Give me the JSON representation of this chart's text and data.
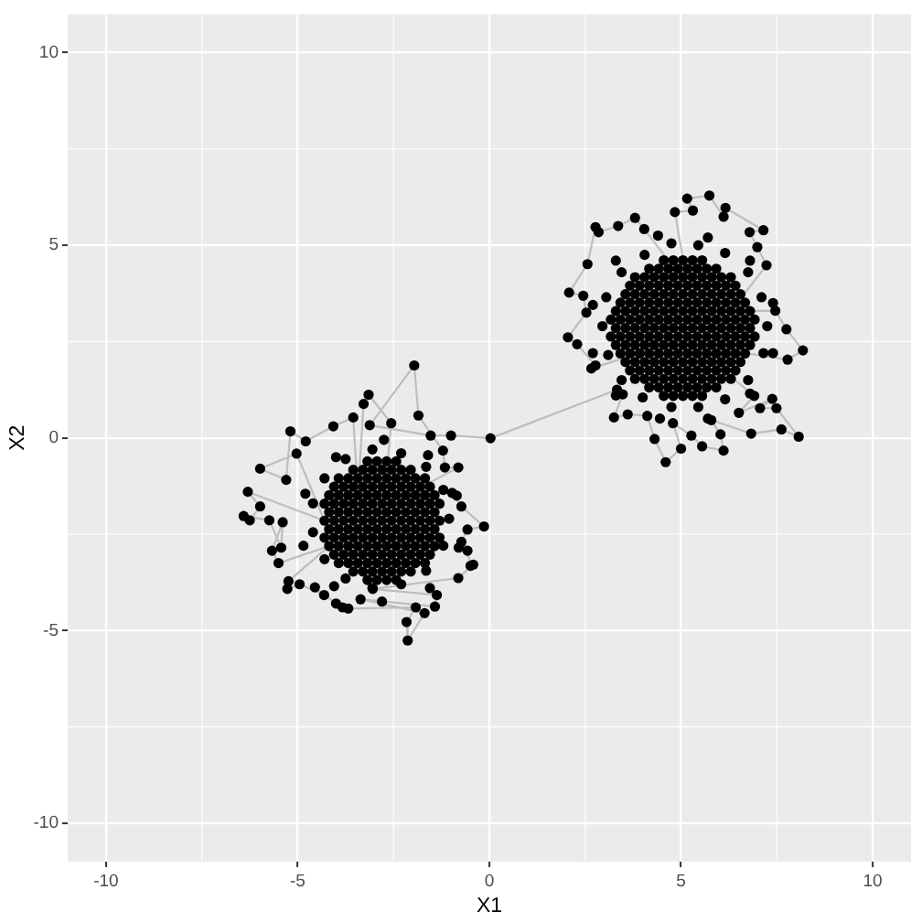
{
  "chart_data": {
    "type": "scatter",
    "xlabel": "X1",
    "ylabel": "X2",
    "xlim": [
      -11,
      11
    ],
    "ylim": [
      -11,
      11
    ],
    "xticks": [
      -10,
      -5,
      0,
      5,
      10
    ],
    "yticks": [
      -10,
      -5,
      0,
      5,
      10
    ],
    "grid": true,
    "marker": "circle",
    "series": [
      {
        "type": "line",
        "marker": "none",
        "color": "#bebebe",
        "x": [
          -2.8,
          -2.56,
          -3.15,
          -3.28,
          -3.43,
          -3.55,
          -4.07,
          -4.79,
          -5.19,
          -5.3,
          -5.98,
          -5.03,
          -4.3,
          -6.3,
          -5.98,
          -6.25,
          -6.41,
          -5.74,
          -5.43,
          -5.39,
          -5.67,
          -5.5,
          -4.18,
          -5.24,
          -5.27,
          -4.95,
          -4.31,
          -4.55,
          -4,
          -3.83,
          -3.68,
          -1.92,
          -2.16,
          -2.13,
          -1.69,
          -3.36,
          -1.42,
          -1.37,
          -3.04,
          -0.81,
          -0.42,
          -0.49,
          -0.57,
          -0.73,
          -0.57,
          -0.14,
          -0.73,
          -0.97,
          -2.18,
          -0.81,
          -1.16,
          -1.21,
          -1.85,
          -1.96,
          -3.12,
          -1.53,
          -1,
          0.03,
          3.33,
          3.48,
          3.25,
          3.61,
          4.12,
          4.31,
          4.6,
          5,
          4.79,
          5.27,
          5.55,
          6.11,
          6.03,
          5.79,
          6.83,
          7.62,
          8.07,
          7.49,
          7.06,
          7.38,
          6.51,
          6.91,
          5.3,
          7.78,
          8.18,
          7.75,
          7.46,
          6.3,
          7.23,
          6.99,
          6.79,
          7.15,
          6.16,
          6.11,
          5.74,
          5.16,
          5.31,
          4.84,
          5.17,
          4.04,
          3.8,
          3.36,
          2.85,
          2.77,
          2.56,
          2.08,
          2.45,
          2.53,
          2.05,
          2.29,
          2.77,
          2.66,
          4.55
        ],
        "values": [
          -2.15,
          0.38,
          1.12,
          0.88,
          -1.49,
          0.53,
          0.3,
          -0.09,
          0.17,
          -1.09,
          -0.8,
          -0.41,
          -2.15,
          -1.4,
          -1.78,
          -2.14,
          -2.03,
          -2.14,
          -2.85,
          -2.19,
          -2.93,
          -3.25,
          -2.81,
          -3.72,
          -3.92,
          -3.8,
          -4.08,
          -3.88,
          -4.3,
          -4.4,
          -4.43,
          -4.4,
          -4.78,
          -5.26,
          -4.55,
          -4.19,
          -4.38,
          -4.08,
          -3.92,
          -3.64,
          -3.29,
          -3.32,
          -2.93,
          -2.7,
          -2.38,
          -2.3,
          -1.78,
          -1.43,
          -1.49,
          -0.77,
          -0.77,
          -0.33,
          0.58,
          1.88,
          0.33,
          0.06,
          0.06,
          -0.01,
          1.25,
          1.13,
          0.53,
          0.61,
          0.57,
          -0.03,
          -0.63,
          -0.28,
          0.38,
          0.06,
          -0.22,
          -0.33,
          0.09,
          0.46,
          0.11,
          0.22,
          0.03,
          0.77,
          0.77,
          1.01,
          0.65,
          1.09,
          2.41,
          2.03,
          2.27,
          2.82,
          3.3,
          3.29,
          4.48,
          4.95,
          5.34,
          5.39,
          5.97,
          5.74,
          6.29,
          6.21,
          5.9,
          5.86,
          3.95,
          5.42,
          5.71,
          5.5,
          5.34,
          5.47,
          4.51,
          3.77,
          3.69,
          3.25,
          2.61,
          2.43,
          1.88,
          1.8,
          2.41
        ]
      },
      {
        "type": "scatter",
        "color": "#000000",
        "x": [
          -1.96,
          -1.85,
          -3.15,
          -3.28,
          -3.55,
          -3.12,
          -4.07,
          -5.19,
          -4.79,
          -5.03,
          -5.98,
          -5.3,
          -6.3,
          -5.98,
          -6.41,
          -6.25,
          -5.74,
          -5.39,
          -5.67,
          -5.43,
          -5.5,
          -5.24,
          -5.27,
          -4.95,
          -4.55,
          -4.31,
          -4,
          -3.68,
          -3.83,
          -3.36,
          -3.04,
          -2.16,
          -2.13,
          -1.92,
          -1.69,
          -1.42,
          -1.37,
          -0.81,
          -0.49,
          -0.42,
          -0.57,
          -0.73,
          -0.14,
          -0.57,
          -0.73,
          -0.97,
          -0.81,
          -1.16,
          -1,
          -1.21,
          -1.53,
          -2.56,
          -1.05,
          -1.2,
          -1.65,
          -2.3,
          -3.05,
          -3.75,
          -4.3,
          -4.6,
          -4.6,
          -4.3,
          -3.75,
          -3.05,
          -2.3,
          -1.65,
          -1.2,
          -0.85,
          -1.6,
          -2.75,
          -4,
          -4.8,
          -4.85,
          -4.05,
          -2.8,
          -1.55,
          -0.8,
          -3.18,
          -2.93,
          -2.68,
          -2.43,
          -3.55,
          -3.3,
          -3.05,
          -2.8,
          -2.55,
          -2.3,
          -2.05,
          -3.93,
          -3.68,
          -3.43,
          -3.18,
          -2.93,
          -2.68,
          -2.43,
          -2.18,
          -1.93,
          -1.68,
          -4.05,
          -3.8,
          -3.55,
          -3.3,
          -3.05,
          -2.8,
          -2.55,
          -2.3,
          -2.05,
          -1.8,
          -1.55,
          -4.18,
          -3.93,
          -3.68,
          -3.43,
          -3.18,
          -2.93,
          -2.68,
          -2.43,
          -2.18,
          -1.93,
          -1.68,
          -1.43,
          -4.3,
          -4.05,
          -3.8,
          -3.55,
          -3.3,
          -3.05,
          -2.8,
          -2.55,
          -2.3,
          -2.05,
          -1.8,
          -1.55,
          -1.3,
          -4.18,
          -3.93,
          -3.68,
          -3.43,
          -3.18,
          -2.93,
          -2.68,
          -2.43,
          -2.18,
          -1.93,
          -1.68,
          -1.43,
          -4.3,
          -4.05,
          -3.8,
          -3.55,
          -3.3,
          -3.05,
          -2.8,
          -2.55,
          -2.3,
          -2.05,
          -1.8,
          -1.55,
          -1.3,
          -4.18,
          -3.93,
          -3.68,
          -3.43,
          -3.18,
          -2.93,
          -2.68,
          -2.43,
          -2.18,
          -1.93,
          -1.68,
          -1.43,
          -4.3,
          -4.05,
          -3.8,
          -3.55,
          -3.3,
          -3.05,
          -2.8,
          -2.55,
          -2.3,
          -2.05,
          -1.8,
          -1.55,
          -1.3,
          -4.18,
          -3.93,
          -3.68,
          -3.43,
          -3.18,
          -2.93,
          -2.68,
          -2.43,
          -2.18,
          -1.93,
          -1.68,
          -1.43,
          -4.05,
          -3.8,
          -3.55,
          -3.3,
          -3.05,
          -2.8,
          -2.55,
          -2.3,
          -2.05,
          -1.8,
          -1.55,
          -3.93,
          -3.68,
          -3.43,
          -3.18,
          -2.93,
          -2.68,
          -2.43,
          -2.18,
          -1.93,
          -1.68,
          -3.55,
          -3.3,
          -3.05,
          -2.8,
          -2.55,
          -2.3,
          -2.05,
          -3.18,
          -2.93,
          -2.68,
          -2.43,
          0.03,
          3.33,
          5.16,
          5.74,
          6.16,
          6.11,
          5.31,
          4.84,
          3.8,
          3.36,
          2.77,
          2.85,
          4.04,
          6.79,
          7.15,
          2.56,
          2.08,
          2.45,
          2.53,
          2.05,
          2.29,
          2.66,
          2.77,
          8.18,
          7.78,
          7.75,
          7.46,
          7.23,
          6.99,
          7.38,
          7.49,
          8.07,
          7.62,
          6.83,
          6.11,
          4.6,
          5,
          5.55,
          4.31,
          5.27,
          6.03,
          3.25,
          3.61,
          4.12,
          4.79,
          5.79,
          6.51,
          3.48,
          6.91,
          7.06,
          7.25,
          7.1,
          6.75,
          6.15,
          5.45,
          4.75,
          4.05,
          3.45,
          3.05,
          2.95,
          3.1,
          3.45,
          4,
          4.75,
          5.45,
          6.15,
          6.75,
          7.15,
          7.4,
          6.8,
          5.7,
          4.4,
          3.3,
          2.7,
          2.7,
          3.3,
          4.45,
          5.7,
          6.8,
          7.4,
          4.55,
          4.8,
          5.05,
          5.3,
          5.55,
          4.17,
          4.42,
          4.67,
          4.92,
          5.17,
          5.42,
          5.67,
          5.92,
          3.8,
          4.05,
          4.3,
          4.55,
          4.8,
          5.05,
          5.3,
          5.55,
          5.8,
          6.05,
          6.3,
          3.67,
          3.92,
          4.17,
          4.42,
          4.67,
          4.92,
          5.17,
          5.42,
          5.67,
          5.92,
          6.17,
          6.42,
          3.55,
          3.8,
          4.05,
          4.3,
          4.55,
          4.8,
          5.05,
          5.3,
          5.55,
          5.8,
          6.05,
          6.3,
          6.55,
          3.42,
          3.67,
          3.92,
          4.17,
          4.42,
          4.67,
          4.92,
          5.17,
          5.42,
          5.67,
          5.92,
          6.17,
          6.42,
          6.67,
          3.3,
          3.55,
          3.8,
          4.05,
          4.3,
          4.55,
          4.8,
          5.05,
          5.3,
          5.55,
          5.8,
          6.05,
          6.3,
          6.55,
          6.8,
          3.17,
          3.42,
          3.67,
          3.92,
          4.17,
          4.42,
          4.67,
          4.92,
          5.17,
          5.42,
          5.67,
          5.92,
          6.17,
          6.42,
          6.67,
          6.92,
          3.3,
          3.55,
          3.8,
          4.05,
          4.3,
          4.55,
          4.8,
          5.05,
          5.3,
          5.55,
          5.8,
          6.05,
          6.3,
          6.55,
          6.8,
          3.17,
          3.42,
          3.67,
          3.92,
          4.17,
          4.42,
          4.67,
          4.92,
          5.17,
          5.42,
          5.67,
          5.92,
          6.17,
          6.42,
          6.67,
          6.92,
          3.3,
          3.55,
          3.8,
          4.05,
          4.3,
          4.55,
          4.8,
          5.05,
          5.3,
          5.55,
          5.8,
          6.05,
          6.3,
          6.55,
          6.8,
          3.42,
          3.67,
          3.92,
          4.17,
          4.42,
          4.67,
          4.92,
          5.17,
          5.42,
          5.67,
          5.92,
          6.17,
          6.42,
          6.67,
          3.55,
          3.8,
          4.05,
          4.3,
          4.55,
          4.8,
          5.05,
          5.3,
          5.55,
          5.8,
          6.05,
          6.3,
          6.55,
          3.67,
          3.92,
          4.17,
          4.42,
          4.67,
          4.92,
          5.17,
          5.42,
          5.67,
          5.92,
          6.17,
          6.42,
          3.8,
          4.05,
          4.3,
          4.55,
          4.8,
          5.05,
          5.3,
          5.55,
          5.8,
          6.05,
          6.3,
          4.17,
          4.42,
          4.67,
          4.92,
          5.17,
          5.42,
          5.67,
          5.92,
          4.55,
          4.8,
          5.05,
          5.3,
          5.55
        ],
        "values": [
          1.88,
          0.58,
          1.12,
          0.88,
          0.53,
          0.33,
          0.3,
          0.17,
          -0.09,
          -0.41,
          -0.8,
          -1.09,
          -1.4,
          -1.78,
          -2.03,
          -2.14,
          -2.14,
          -2.19,
          -2.93,
          -2.85,
          -3.25,
          -3.72,
          -3.92,
          -3.8,
          -3.88,
          -4.08,
          -4.3,
          -4.43,
          -4.4,
          -4.19,
          -3.92,
          -4.78,
          -5.26,
          -4.4,
          -4.55,
          -4.38,
          -4.08,
          -3.64,
          -3.32,
          -3.29,
          -2.93,
          -2.7,
          -2.3,
          -2.38,
          -1.78,
          -1.43,
          -0.77,
          -0.77,
          0.06,
          -0.33,
          0.06,
          0.38,
          -2.1,
          -1.35,
          -0.75,
          -0.4,
          -0.3,
          -0.55,
          -1.05,
          -1.7,
          -2.45,
          -3.15,
          -3.65,
          -3.9,
          -3.8,
          -3.45,
          -2.8,
          -1.5,
          -0.45,
          -0.05,
          -0.5,
          -1.45,
          -2.8,
          -3.85,
          -4.25,
          -3.9,
          -2.85,
          -3.69,
          -3.69,
          -3.69,
          -3.69,
          -3.47,
          -3.47,
          -3.47,
          -3.47,
          -3.47,
          -3.47,
          -3.47,
          -3.25,
          -3.25,
          -3.25,
          -3.25,
          -3.25,
          -3.25,
          -3.25,
          -3.25,
          -3.25,
          -3.25,
          -3.03,
          -3.03,
          -3.03,
          -3.03,
          -3.03,
          -3.03,
          -3.03,
          -3.03,
          -3.03,
          -3.03,
          -3.03,
          -2.81,
          -2.81,
          -2.81,
          -2.81,
          -2.81,
          -2.81,
          -2.81,
          -2.81,
          -2.81,
          -2.81,
          -2.81,
          -2.81,
          -2.59,
          -2.59,
          -2.59,
          -2.59,
          -2.59,
          -2.59,
          -2.59,
          -2.59,
          -2.59,
          -2.59,
          -2.59,
          -2.59,
          -2.59,
          -2.37,
          -2.37,
          -2.37,
          -2.37,
          -2.37,
          -2.37,
          -2.37,
          -2.37,
          -2.37,
          -2.37,
          -2.37,
          -2.37,
          -2.15,
          -2.15,
          -2.15,
          -2.15,
          -2.15,
          -2.15,
          -2.15,
          -2.15,
          -2.15,
          -2.15,
          -2.15,
          -2.15,
          -2.15,
          -1.93,
          -1.93,
          -1.93,
          -1.93,
          -1.93,
          -1.93,
          -1.93,
          -1.93,
          -1.93,
          -1.93,
          -1.93,
          -1.93,
          -1.71,
          -1.71,
          -1.71,
          -1.71,
          -1.71,
          -1.71,
          -1.71,
          -1.71,
          -1.71,
          -1.71,
          -1.71,
          -1.71,
          -1.71,
          -1.49,
          -1.49,
          -1.49,
          -1.49,
          -1.49,
          -1.49,
          -1.49,
          -1.49,
          -1.49,
          -1.49,
          -1.49,
          -1.49,
          -1.27,
          -1.27,
          -1.27,
          -1.27,
          -1.27,
          -1.27,
          -1.27,
          -1.27,
          -1.27,
          -1.27,
          -1.27,
          -1.05,
          -1.05,
          -1.05,
          -1.05,
          -1.05,
          -1.05,
          -1.05,
          -1.05,
          -1.05,
          -1.05,
          -0.83,
          -0.83,
          -0.83,
          -0.83,
          -0.83,
          -0.83,
          -0.83,
          -0.61,
          -0.61,
          -0.61,
          -0.61,
          -0.01,
          1.25,
          6.21,
          6.29,
          5.97,
          5.74,
          5.9,
          5.86,
          5.71,
          5.5,
          5.47,
          5.34,
          5.42,
          5.34,
          5.39,
          4.51,
          3.77,
          3.69,
          3.25,
          2.61,
          2.43,
          1.8,
          1.88,
          2.27,
          2.03,
          2.82,
          3.3,
          4.48,
          4.95,
          1.01,
          0.77,
          0.03,
          0.22,
          0.11,
          -0.33,
          -0.63,
          -0.28,
          -0.22,
          -0.03,
          0.06,
          0.09,
          0.53,
          0.61,
          0.57,
          0.38,
          0.46,
          0.65,
          1.13,
          1.09,
          0.77,
          2.9,
          3.65,
          4.3,
          4.8,
          5,
          5.05,
          4.75,
          4.3,
          3.65,
          2.9,
          2.15,
          1.5,
          1.05,
          0.8,
          0.8,
          1,
          1.5,
          2.2,
          3.5,
          4.6,
          5.2,
          5.25,
          4.6,
          3.45,
          2.2,
          1.1,
          0.5,
          0.5,
          1.15,
          2.2,
          1.09,
          1.09,
          1.09,
          1.09,
          1.09,
          1.31,
          1.31,
          1.31,
          1.31,
          1.31,
          1.31,
          1.31,
          1.31,
          1.53,
          1.53,
          1.53,
          1.53,
          1.53,
          1.53,
          1.53,
          1.53,
          1.53,
          1.53,
          1.53,
          1.75,
          1.75,
          1.75,
          1.75,
          1.75,
          1.75,
          1.75,
          1.75,
          1.75,
          1.75,
          1.75,
          1.75,
          1.97,
          1.97,
          1.97,
          1.97,
          1.97,
          1.97,
          1.97,
          1.97,
          1.97,
          1.97,
          1.97,
          1.97,
          1.97,
          2.19,
          2.19,
          2.19,
          2.19,
          2.19,
          2.19,
          2.19,
          2.19,
          2.19,
          2.19,
          2.19,
          2.19,
          2.19,
          2.19,
          2.41,
          2.41,
          2.41,
          2.41,
          2.41,
          2.41,
          2.41,
          2.41,
          2.41,
          2.41,
          2.41,
          2.41,
          2.41,
          2.41,
          2.41,
          2.63,
          2.63,
          2.63,
          2.63,
          2.63,
          2.63,
          2.63,
          2.63,
          2.63,
          2.63,
          2.63,
          2.63,
          2.63,
          2.63,
          2.63,
          2.63,
          2.85,
          2.85,
          2.85,
          2.85,
          2.85,
          2.85,
          2.85,
          2.85,
          2.85,
          2.85,
          2.85,
          2.85,
          2.85,
          2.85,
          2.85,
          3.07,
          3.07,
          3.07,
          3.07,
          3.07,
          3.07,
          3.07,
          3.07,
          3.07,
          3.07,
          3.07,
          3.07,
          3.07,
          3.07,
          3.07,
          3.07,
          3.29,
          3.29,
          3.29,
          3.29,
          3.29,
          3.29,
          3.29,
          3.29,
          3.29,
          3.29,
          3.29,
          3.29,
          3.29,
          3.29,
          3.29,
          3.51,
          3.51,
          3.51,
          3.51,
          3.51,
          3.51,
          3.51,
          3.51,
          3.51,
          3.51,
          3.51,
          3.51,
          3.51,
          3.51,
          3.73,
          3.73,
          3.73,
          3.73,
          3.73,
          3.73,
          3.73,
          3.73,
          3.73,
          3.73,
          3.73,
          3.73,
          3.73,
          3.95,
          3.95,
          3.95,
          3.95,
          3.95,
          3.95,
          3.95,
          3.95,
          3.95,
          3.95,
          3.95,
          3.95,
          4.17,
          4.17,
          4.17,
          4.17,
          4.17,
          4.17,
          4.17,
          4.17,
          4.17,
          4.17,
          4.17,
          4.39,
          4.39,
          4.39,
          4.39,
          4.39,
          4.39,
          4.39,
          4.39,
          4.61,
          4.61,
          4.61,
          4.61,
          4.61
        ]
      }
    ]
  }
}
